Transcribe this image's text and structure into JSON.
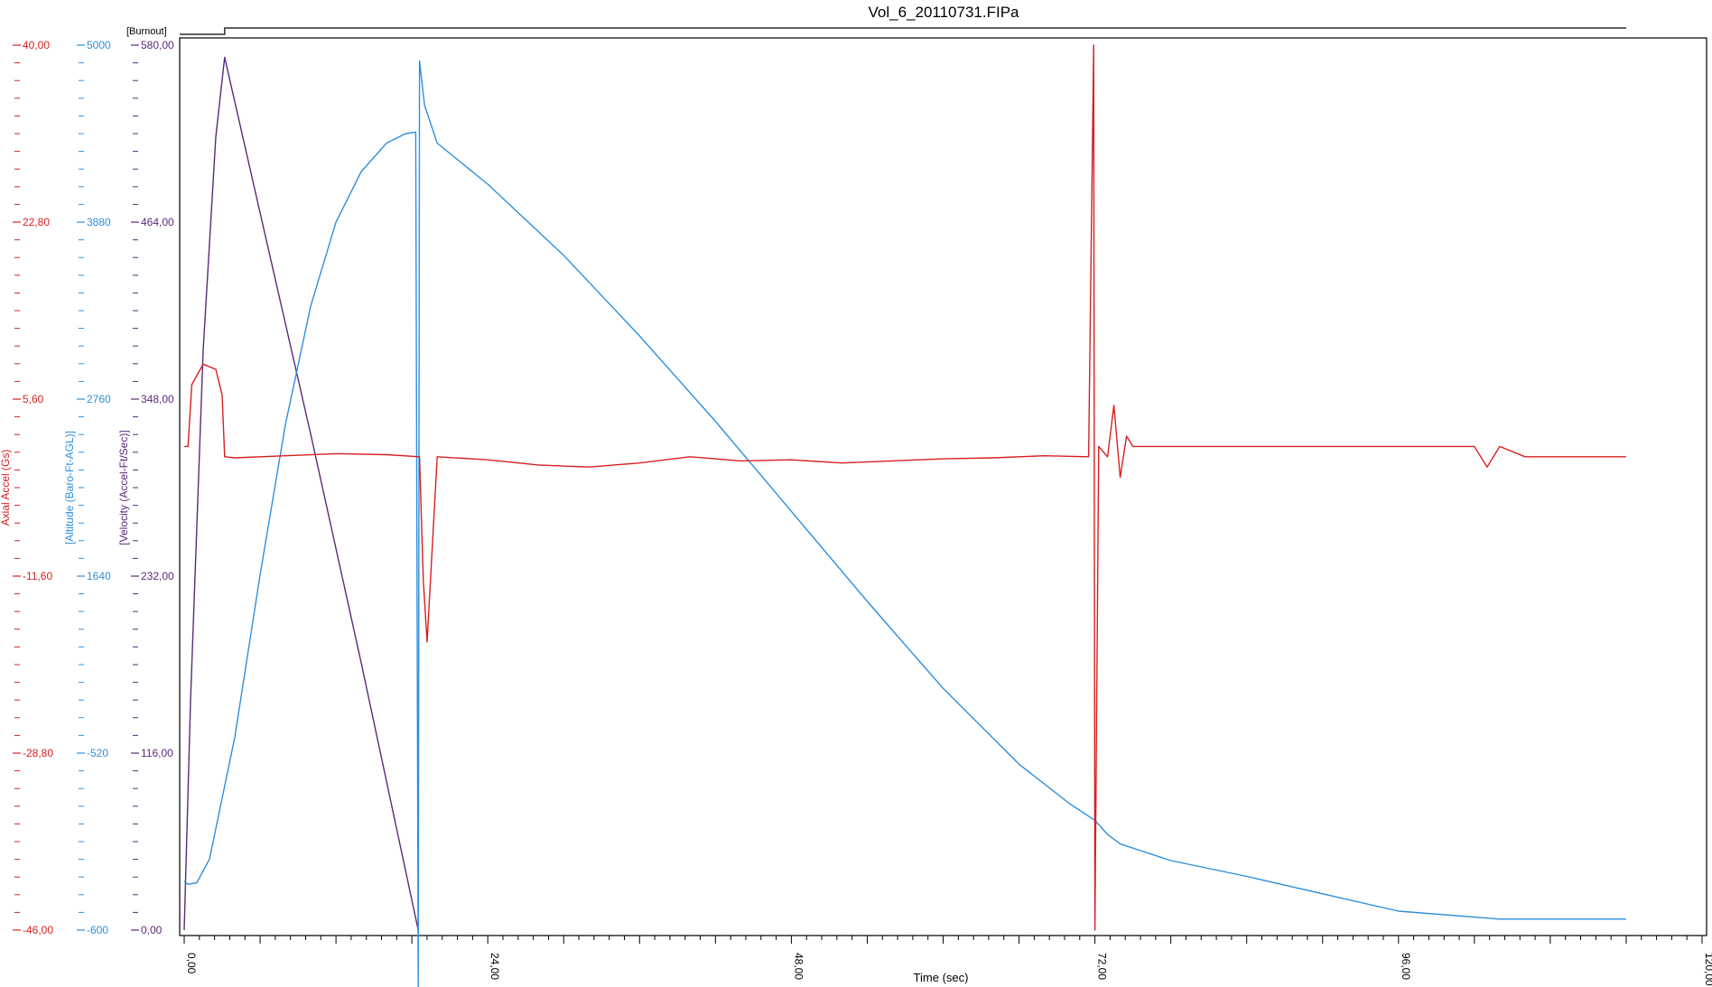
{
  "chart_data": {
    "type": "line",
    "title": "Vol_6_20110731.FIPa",
    "xlabel": "Time (sec)",
    "xlim": [
      0,
      120
    ],
    "x_ticks": [
      "0,00",
      "24,00",
      "48,00",
      "72,00",
      "96,00",
      "120,00"
    ],
    "x_tick_values": [
      0,
      24,
      48,
      72,
      96,
      120
    ],
    "event_marker": {
      "label": "[Burnout]",
      "x": 3.2
    },
    "axes": [
      {
        "id": "accel",
        "label": "Axial Accel (Gs)",
        "color": "#d62020",
        "ylim": [
          -46,
          40
        ],
        "tick_labels": [
          "40,00",
          "22,80",
          "5,60",
          "-11,60",
          "-28,80",
          "-46,00"
        ]
      },
      {
        "id": "alt",
        "label": "[Altitude (Baro-Ft-AGL)]",
        "color": "#2f8fdc",
        "ylim": [
          -600,
          5000
        ],
        "tick_labels": [
          "5000",
          "3880",
          "2760",
          "1640",
          "-520",
          "-600"
        ]
      },
      {
        "id": "vel",
        "label": "[Velocity (Accel-Ft/Sec)]",
        "color": "#5a2a7a",
        "ylim": [
          0,
          580
        ],
        "tick_labels": [
          "580,00",
          "464,00",
          "348,00",
          "232,00",
          "116,00",
          "0,00"
        ]
      }
    ],
    "series": [
      {
        "axis": "vel",
        "x": [
          0,
          0.5,
          1.5,
          2.5,
          3.2,
          6,
          10,
          14,
          18.5
        ],
        "y": [
          0,
          150,
          380,
          520,
          572,
          470,
          325,
          175,
          0
        ]
      },
      {
        "axis": "alt",
        "x": [
          0,
          0.3,
          1,
          2,
          4,
          6,
          8,
          10,
          12,
          14,
          16,
          17.5,
          18.3,
          18.5,
          18.6,
          19,
          20,
          24,
          30,
          36,
          42,
          48,
          54,
          60,
          66,
          70,
          72,
          73,
          74,
          78,
          84,
          90,
          96,
          104,
          114
        ],
        "y": [
          -290,
          -310,
          -300,
          -150,
          620,
          1650,
          2600,
          3350,
          3880,
          4200,
          4380,
          4440,
          4450,
          -1000,
          4900,
          4620,
          4380,
          4120,
          3670,
          3160,
          2620,
          2050,
          1480,
          930,
          450,
          200,
          95,
          5,
          -55,
          -160,
          -260,
          -370,
          -480,
          -530,
          -530
        ]
      },
      {
        "axis": "accel",
        "x": [
          0,
          0.3,
          0.6,
          1.5,
          2.5,
          3,
          3.2,
          4,
          8,
          12,
          16,
          18.6,
          18.9,
          19.2,
          20,
          24,
          28,
          32,
          36,
          40,
          44,
          48,
          52,
          56,
          60,
          64,
          68,
          71.5,
          71.9,
          72,
          72.3,
          73,
          73.5,
          74,
          74.5,
          75,
          76,
          80,
          85,
          90,
          96,
          102,
          103,
          104,
          106,
          110,
          114
        ],
        "y": [
          1,
          1,
          7,
          9,
          8.5,
          6,
          0,
          -0.1,
          0.1,
          0.3,
          0.2,
          0,
          -12,
          -18,
          0,
          -0.3,
          -0.8,
          -1,
          -0.6,
          0,
          -0.4,
          -0.3,
          -0.6,
          -0.4,
          -0.2,
          -0.1,
          0.1,
          0,
          40,
          -46,
          1,
          0,
          5,
          -2,
          2,
          1,
          1,
          1,
          1,
          1,
          1,
          1,
          -1,
          1,
          0,
          0,
          0
        ]
      }
    ]
  }
}
